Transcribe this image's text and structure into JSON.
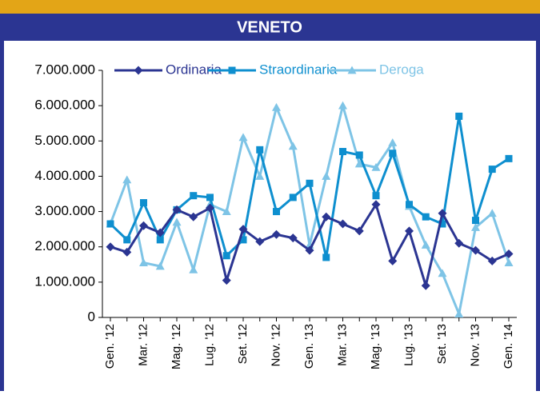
{
  "chart_data": {
    "type": "line",
    "title": "VENETO",
    "categories": [
      "Gen. '12",
      null,
      "Mar. '12",
      null,
      "Mag. '12",
      null,
      "Lug. '12",
      null,
      "Set. '12",
      null,
      "Nov. '12",
      null,
      "Gen. '13",
      null,
      "Mar. '13",
      null,
      "Mag. '13",
      null,
      "Lug. '13",
      null,
      "Set. '13",
      null,
      "Nov. '13",
      null,
      "Gen. '14"
    ],
    "series": [
      {
        "name": "Ordinaria",
        "color": "#2b3592",
        "marker": "diamond",
        "values": [
          2000000,
          1850000,
          2600000,
          2400000,
          3050000,
          2850000,
          3100000,
          1050000,
          2500000,
          2150000,
          2350000,
          2250000,
          1900000,
          2850000,
          2650000,
          2450000,
          3200000,
          1600000,
          2450000,
          900000,
          2950000,
          2100000,
          1900000,
          1600000,
          1800000
        ]
      },
      {
        "name": "Straordinaria",
        "color": "#0e8fcf",
        "marker": "square",
        "values": [
          2650000,
          2200000,
          3250000,
          2200000,
          3050000,
          3450000,
          3400000,
          1750000,
          2200000,
          4750000,
          3000000,
          3400000,
          3800000,
          1700000,
          4700000,
          4600000,
          3450000,
          4650000,
          3200000,
          2850000,
          2650000,
          5700000,
          2750000,
          4200000,
          4500000
        ]
      },
      {
        "name": "Deroga",
        "color": "#7ec4e6",
        "marker": "triangle",
        "values": [
          2650000,
          3900000,
          1550000,
          1450000,
          2700000,
          1350000,
          3200000,
          3000000,
          5100000,
          4000000,
          5950000,
          4850000,
          2050000,
          4000000,
          6000000,
          4350000,
          4250000,
          4950000,
          3150000,
          2050000,
          1250000,
          100000,
          2550000,
          2950000,
          1550000
        ]
      }
    ],
    "ylim": [
      0,
      7000000
    ],
    "yticks": [
      0,
      {
        "value": 1000000,
        "label": "1.000.000"
      },
      {
        "value": 2000000,
        "label": "2.000.000"
      },
      {
        "value": 3000000,
        "label": "3.000.000"
      },
      {
        "value": 4000000,
        "label": "4.000.000"
      },
      {
        "value": 5000000,
        "label": "5.000.000"
      },
      {
        "value": 6000000,
        "label": "6.000.000"
      },
      {
        "value": 7000000,
        "label": "7.000.000"
      }
    ],
    "legend": "top"
  }
}
